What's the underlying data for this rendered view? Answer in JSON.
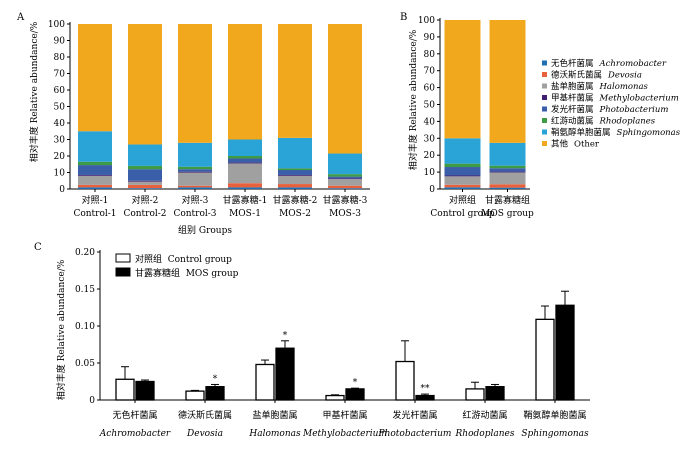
{
  "colors": {
    "Achromobacter": "#1f6fb2",
    "Devosia": "#e8603c",
    "Halomonas": "#a0a0a0",
    "Methylobacterium": "#3f1d72",
    "Photobacterium": "#3b5ea8",
    "Rhodoplanes": "#3d9a45",
    "Sphingomonas": "#2aa3d6",
    "Other": "#f2a81d",
    "control_bar_fill": "#ffffff",
    "mos_bar_fill": "#000000"
  },
  "legend_ab": [
    {
      "key": "Achromobacter",
      "zh": "无色杆菌属",
      "en": "Achromobacter"
    },
    {
      "key": "Devosia",
      "zh": "德沃斯氏菌属",
      "en": "Devosia"
    },
    {
      "key": "Halomonas",
      "zh": "盐单胞菌属",
      "en": "Halomonas"
    },
    {
      "key": "Methylobacterium",
      "zh": "甲基杆菌属",
      "en": "Methylobacterium"
    },
    {
      "key": "Photobacterium",
      "zh": "发光杆菌属",
      "en": "Photobacterium"
    },
    {
      "key": "Rhodoplanes",
      "zh": "红游动菌属",
      "en": "Rhodoplanes"
    },
    {
      "key": "Sphingomonas",
      "zh": "鞘氨醇单胞菌属",
      "en": "Sphingomonas"
    },
    {
      "key": "Other",
      "zh": "其他",
      "en": "Other"
    }
  ],
  "chart_data": [
    {
      "panel": "A",
      "type": "bar",
      "stacked": true,
      "ylabel": "相对丰度 Relative abundance/%",
      "xlabel": "组别 Groups",
      "ylim": [
        0,
        100
      ],
      "yticks": [
        0,
        10,
        20,
        30,
        40,
        50,
        60,
        70,
        80,
        90,
        100
      ],
      "categories": [
        {
          "zh": "对照-1",
          "en": "Control-1"
        },
        {
          "zh": "对照-2",
          "en": "Control-2"
        },
        {
          "zh": "对照-3",
          "en": "Control-3"
        },
        {
          "zh": "甘露寡糖-1",
          "en": "MOS-1"
        },
        {
          "zh": "甘露寡糖-2",
          "en": "MOS-2"
        },
        {
          "zh": "甘露寡糖-3",
          "en": "MOS-3"
        }
      ],
      "series": [
        {
          "key": "Achromobacter",
          "values": [
            1.0,
            0.5,
            1.0,
            1.0,
            1.0,
            0.5
          ]
        },
        {
          "key": "Devosia",
          "values": [
            1.5,
            2.0,
            1.0,
            2.5,
            2.0,
            1.5
          ]
        },
        {
          "key": "Halomonas",
          "values": [
            5.5,
            2.0,
            8.0,
            12.0,
            5.0,
            4.0
          ]
        },
        {
          "key": "Methylobacterium",
          "values": [
            0.5,
            0.5,
            0.5,
            0.5,
            0.5,
            0.5
          ]
        },
        {
          "key": "Photobacterium",
          "values": [
            6.0,
            7.0,
            1.5,
            2.5,
            3.0,
            1.0
          ]
        },
        {
          "key": "Rhodoplanes",
          "values": [
            2.0,
            2.0,
            1.5,
            1.5,
            1.0,
            1.5
          ]
        },
        {
          "key": "Sphingomonas",
          "values": [
            18.5,
            13.0,
            14.5,
            10.0,
            18.5,
            12.5
          ]
        },
        {
          "key": "Other",
          "values": [
            65.0,
            73.0,
            72.0,
            70.0,
            69.0,
            78.5
          ]
        }
      ]
    },
    {
      "panel": "B",
      "type": "bar",
      "stacked": true,
      "ylabel": "相对丰度 Relative abundance/%",
      "ylim": [
        0,
        100
      ],
      "yticks": [
        0,
        10,
        20,
        30,
        40,
        50,
        60,
        70,
        80,
        90,
        100
      ],
      "categories": [
        {
          "zh": "对照组",
          "en": "Control group"
        },
        {
          "zh": "甘露寡糖组",
          "en": "MOS group"
        }
      ],
      "series": [
        {
          "key": "Achromobacter",
          "values": [
            1.0,
            0.8
          ]
        },
        {
          "key": "Devosia",
          "values": [
            1.5,
            2.0
          ]
        },
        {
          "key": "Halomonas",
          "values": [
            5.0,
            7.0
          ]
        },
        {
          "key": "Methylobacterium",
          "values": [
            0.5,
            0.5
          ]
        },
        {
          "key": "Photobacterium",
          "values": [
            5.0,
            2.0
          ]
        },
        {
          "key": "Rhodoplanes",
          "values": [
            2.0,
            1.5
          ]
        },
        {
          "key": "Sphingomonas",
          "values": [
            15.0,
            13.5
          ]
        },
        {
          "key": "Other",
          "values": [
            70.0,
            72.7
          ]
        }
      ]
    },
    {
      "panel": "C",
      "type": "bar",
      "stacked": false,
      "ylabel": "相对丰度 Relative abundance/%",
      "ylim": [
        0,
        0.2
      ],
      "yticks": [
        0,
        0.05,
        0.1,
        0.15,
        0.2
      ],
      "ytick_labels": [
        "0",
        "0.05",
        "0.10",
        "0.15",
        "0.20"
      ],
      "categories": [
        {
          "zh": "无色杆菌属",
          "en": "Achromobacter"
        },
        {
          "zh": "德沃斯氏菌属",
          "en": "Devosia"
        },
        {
          "zh": "盐单胞菌属",
          "en": "Halomonas"
        },
        {
          "zh": "甲基杆菌属",
          "en": "Methylobacterium"
        },
        {
          "zh": "发光杆菌属",
          "en": "Photobacterium"
        },
        {
          "zh": "红游动菌属",
          "en": "Rhodoplanes"
        },
        {
          "zh": "鞘氨醇单胞菌属",
          "en": "Sphingomonas"
        }
      ],
      "series": [
        {
          "name": "对照组 Control group",
          "values": [
            0.028,
            0.012,
            0.048,
            0.006,
            0.052,
            0.015,
            0.109
          ],
          "errors": [
            0.017,
            0.001,
            0.006,
            0.001,
            0.028,
            0.009,
            0.018
          ]
        },
        {
          "name": "甘露寡糖组 MOS group",
          "values": [
            0.025,
            0.018,
            0.07,
            0.015,
            0.006,
            0.018,
            0.128
          ],
          "errors": [
            0.002,
            0.003,
            0.01,
            0.001,
            0.002,
            0.003,
            0.019
          ]
        }
      ],
      "significance": [
        {
          "category": 1,
          "series": 1,
          "mark": "*"
        },
        {
          "category": 2,
          "series": 1,
          "mark": "*"
        },
        {
          "category": 3,
          "series": 1,
          "mark": "*"
        },
        {
          "category": 4,
          "series": 1,
          "mark": "**"
        }
      ]
    }
  ],
  "panel_labels": {
    "a": "A",
    "b": "B",
    "c": "C"
  },
  "texts": {
    "ylabel_ab": "相对丰度 Relative abundance/%",
    "ylabel_c": "相对丰度 Relative abundance/%",
    "xlabel_a": "组别 Groups",
    "legend_c_control": "对照组  Control group",
    "legend_c_mos": "甘露寡糖组  MOS group"
  }
}
